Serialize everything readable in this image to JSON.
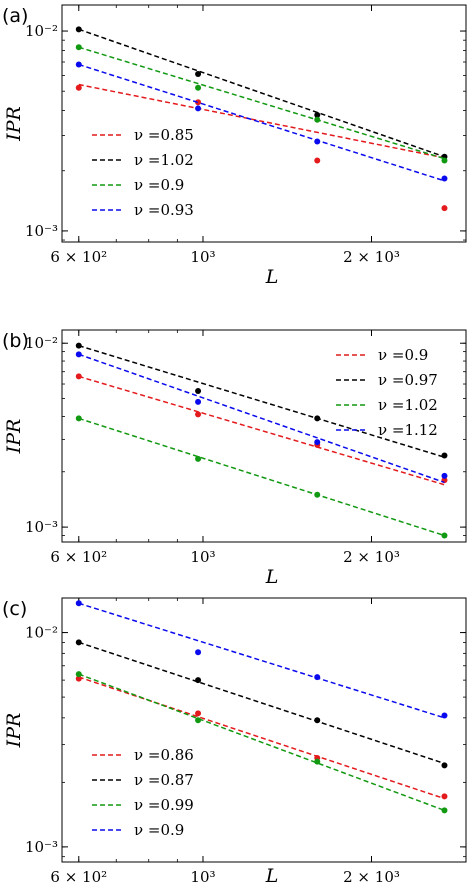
{
  "chart_data": [
    {
      "panel_label": "(a)",
      "type": "scatter",
      "xscale": "log",
      "yscale": "log",
      "xlim": [
        560,
        2950
      ],
      "ylim": [
        0.00088,
        0.0135
      ],
      "xlabel": "L",
      "ylabel": "IPR",
      "xticks": [
        {
          "value": 600,
          "label": "6 × 10²"
        },
        {
          "value": 1000,
          "label": "10³"
        },
        {
          "value": 2000,
          "label": "2 × 10³"
        }
      ],
      "yticks": [
        {
          "value": 0.001,
          "label": "10⁻³"
        },
        {
          "value": 0.01,
          "label": "10⁻²"
        }
      ],
      "legend_position": "lower-left",
      "series": [
        {
          "name": "ν =0.85",
          "color": "#e41a1c",
          "x": [
            600,
            980,
            1600,
            2700
          ],
          "y": [
            0.0052,
            0.0044,
            0.00225,
            0.0013
          ],
          "fit_y": [
            0.0054,
            0.00232
          ]
        },
        {
          "name": "ν =1.02",
          "color": "#000000",
          "x": [
            600,
            980,
            1600,
            2700
          ],
          "y": [
            0.0102,
            0.0061,
            0.0038,
            0.00235
          ],
          "fit_y": [
            0.0102,
            0.00235
          ]
        },
        {
          "name": "ν =0.9",
          "color": "#119911",
          "x": [
            600,
            980,
            1600,
            2700
          ],
          "y": [
            0.0083,
            0.0052,
            0.0036,
            0.00225
          ],
          "fit_y": [
            0.0083,
            0.0023
          ]
        },
        {
          "name": "ν =0.93",
          "color": "#0a0aee",
          "x": [
            600,
            980,
            1600,
            2700
          ],
          "y": [
            0.0068,
            0.0041,
            0.0028,
            0.00183
          ],
          "fit_y": [
            0.0068,
            0.00178
          ]
        }
      ]
    },
    {
      "panel_label": "(b)",
      "type": "scatter",
      "xscale": "log",
      "yscale": "log",
      "xlim": [
        560,
        2950
      ],
      "ylim": [
        0.00083,
        0.0118
      ],
      "xlabel": "L",
      "ylabel": "IPR",
      "xticks": [
        {
          "value": 600,
          "label": "6 × 10²"
        },
        {
          "value": 1000,
          "label": "10³"
        },
        {
          "value": 2000,
          "label": "2 × 10³"
        }
      ],
      "yticks": [
        {
          "value": 0.001,
          "label": "10⁻³"
        },
        {
          "value": 0.01,
          "label": "10⁻²"
        }
      ],
      "legend_position": "upper-right",
      "series": [
        {
          "name": "ν =0.9",
          "color": "#e41a1c",
          "x": [
            600,
            980,
            1600,
            2700
          ],
          "y": [
            0.0066,
            0.0041,
            0.0028,
            0.0018
          ],
          "fit_y": [
            0.0066,
            0.0017
          ]
        },
        {
          "name": "ν =0.97",
          "color": "#000000",
          "x": [
            600,
            980,
            1600,
            2700
          ],
          "y": [
            0.0097,
            0.0055,
            0.0039,
            0.00245
          ],
          "fit_y": [
            0.0097,
            0.0024
          ]
        },
        {
          "name": "ν =1.02",
          "color": "#119911",
          "x": [
            600,
            980,
            1600,
            2700
          ],
          "y": [
            0.0039,
            0.00235,
            0.0015,
            0.0009
          ],
          "fit_y": [
            0.0039,
            0.0009
          ]
        },
        {
          "name": "ν =1.12",
          "color": "#0a0aee",
          "x": [
            600,
            980,
            1600,
            2700
          ],
          "y": [
            0.0087,
            0.0048,
            0.0029,
            0.0019
          ],
          "fit_y": [
            0.0087,
            0.00175
          ]
        }
      ]
    },
    {
      "panel_label": "(c)",
      "type": "scatter",
      "xscale": "log",
      "yscale": "log",
      "xlim": [
        560,
        2950
      ],
      "ylim": [
        0.00085,
        0.0145
      ],
      "xlabel": "L",
      "ylabel": "IPR",
      "xticks": [
        {
          "value": 600,
          "label": "6 × 10²"
        },
        {
          "value": 1000,
          "label": "10³"
        },
        {
          "value": 2000,
          "label": "2 × 10³"
        }
      ],
      "yticks": [
        {
          "value": 0.001,
          "label": "10⁻³"
        },
        {
          "value": 0.01,
          "label": "10⁻²"
        }
      ],
      "legend_position": "lower-left",
      "series": [
        {
          "name": "ν =0.86",
          "color": "#e41a1c",
          "x": [
            600,
            980,
            1600,
            2700
          ],
          "y": [
            0.0061,
            0.0042,
            0.0026,
            0.00172
          ],
          "fit_y": [
            0.0062,
            0.00168
          ]
        },
        {
          "name": "ν =0.87",
          "color": "#000000",
          "x": [
            600,
            980,
            1600,
            2700
          ],
          "y": [
            0.009,
            0.006,
            0.0039,
            0.0024
          ],
          "fit_y": [
            0.009,
            0.00245
          ]
        },
        {
          "name": "ν =0.99",
          "color": "#119911",
          "x": [
            600,
            980,
            1600,
            2700
          ],
          "y": [
            0.0064,
            0.0039,
            0.0025,
            0.00148
          ],
          "fit_y": [
            0.0064,
            0.00148
          ]
        },
        {
          "name": "ν =0.9",
          "color": "#0a0aee",
          "x": [
            600,
            980,
            1600,
            2700
          ],
          "y": [
            0.0137,
            0.0081,
            0.0062,
            0.0041
          ],
          "fit_y": [
            0.0137,
            0.004
          ]
        }
      ]
    }
  ]
}
